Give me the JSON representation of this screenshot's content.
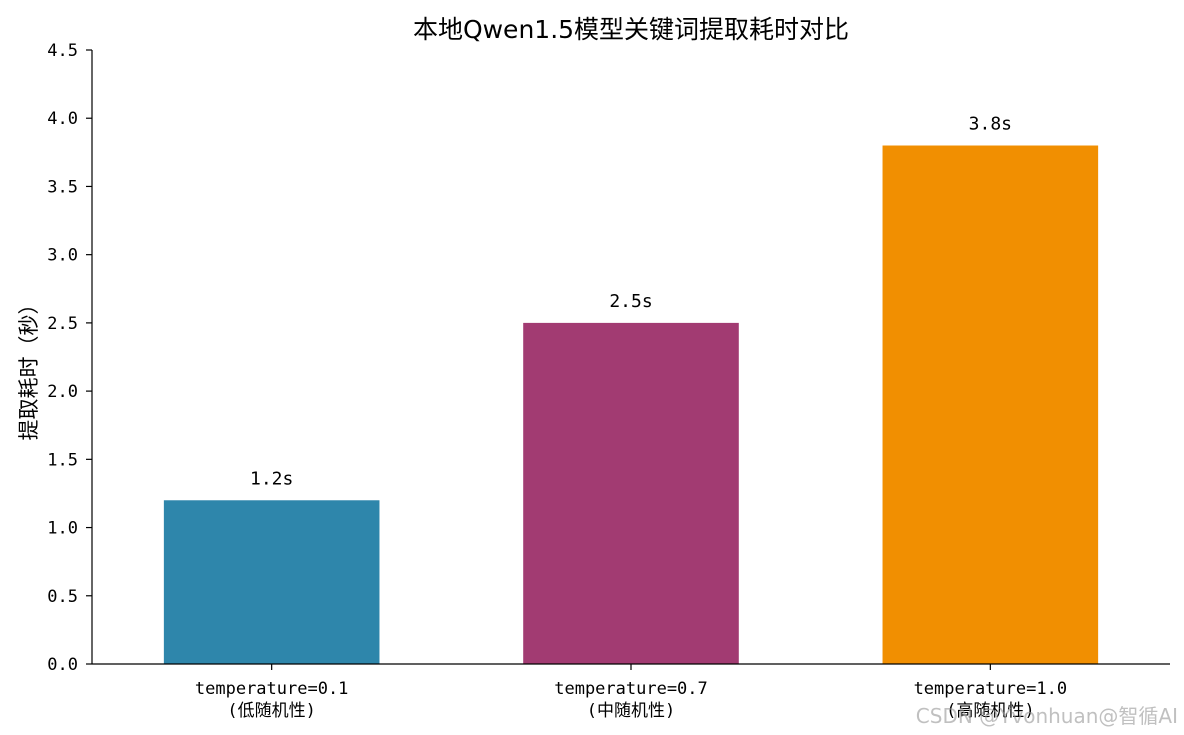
{
  "chart_data": {
    "type": "bar",
    "title": "本地Qwen1.5模型关键词提取耗时对比",
    "xlabel": "",
    "ylabel": "提取耗时（秒）",
    "ylim": [
      0,
      4.5
    ],
    "yticks": [
      "0.0",
      "0.5",
      "1.0",
      "1.5",
      "2.0",
      "2.5",
      "3.0",
      "3.5",
      "4.0",
      "4.5"
    ],
    "categories": [
      [
        "temperature=0.1",
        "(低随机性)"
      ],
      [
        "temperature=0.7",
        "(中随机性)"
      ],
      [
        "temperature=1.0",
        "(高随机性)"
      ]
    ],
    "values": [
      1.2,
      2.5,
      3.8
    ],
    "value_labels": [
      "1.2s",
      "2.5s",
      "3.8s"
    ],
    "colors": [
      "#2e86ab",
      "#a23b72",
      "#f18f01"
    ],
    "grid": false
  },
  "watermark": "CSDN @Yvonhuan@智循AI"
}
